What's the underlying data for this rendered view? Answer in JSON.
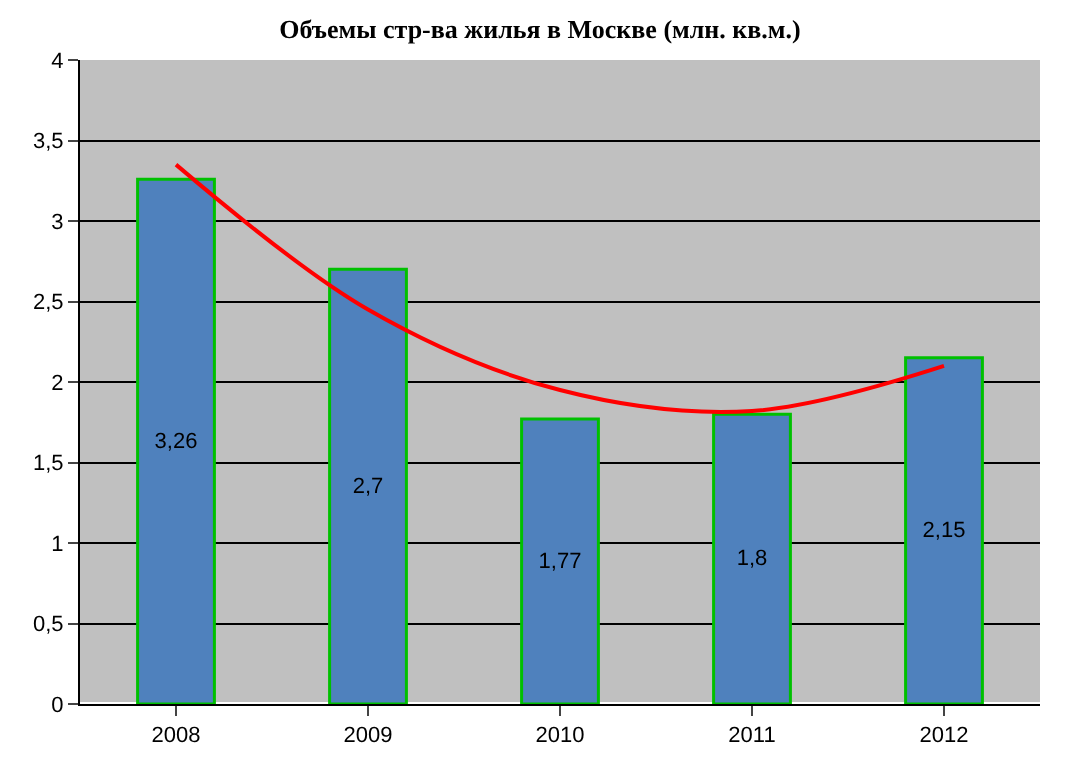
{
  "chart_data": {
    "type": "bar",
    "title": "Объемы стр-ва жилья в Москве (млн. кв.м.)",
    "categories": [
      "2008",
      "2009",
      "2010",
      "2011",
      "2012"
    ],
    "series": [
      {
        "color": "#4f81bd",
        "values": [
          3.26,
          2.7,
          1.77,
          1.8,
          2.15
        ],
        "value_labels": [
          "3,26",
          "2,7",
          "1,77",
          "1,8",
          "2,15"
        ]
      },
      {
        "type": "line",
        "color": "#ff0000",
        "values": [
          3.35,
          2.45,
          1.95,
          1.82,
          2.1
        ]
      }
    ],
    "ylim": [
      0,
      4
    ],
    "yticks": [
      0,
      {
        "value": 0.5,
        "label": "0,5"
      },
      1,
      {
        "value": 1.5,
        "label": "1,5"
      },
      2,
      {
        "value": 2.5,
        "label": "2,5"
      },
      3,
      {
        "value": 3.5,
        "label": "3,5"
      },
      4
    ],
    "grid": "y",
    "marker": "none",
    "line_style": "solid"
  }
}
